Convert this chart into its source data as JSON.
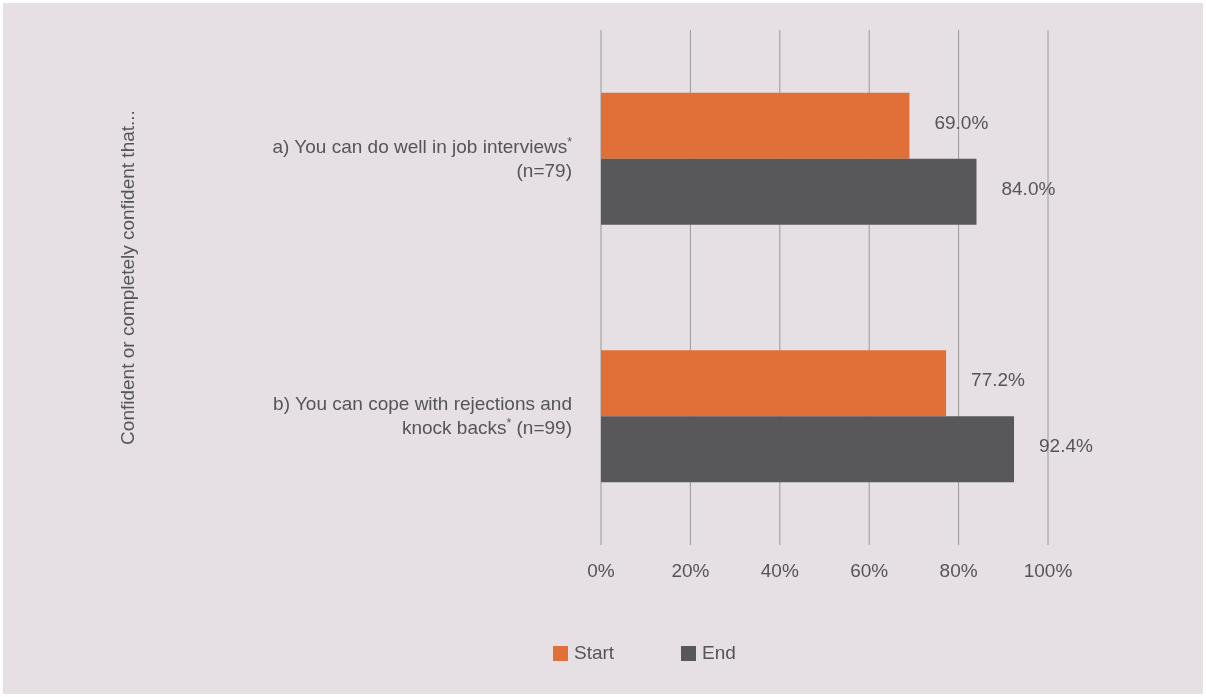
{
  "chart_data": {
    "type": "bar",
    "orientation": "horizontal",
    "annotations": [
      "Confident or completely confident that..."
    ],
    "categories": [
      "a) You can do well in job interviews$^{*}$ (n=79)",
      "b) You can cope with rejections and knock backs$^{*}$ (n=99)"
    ],
    "series": [
      {
        "name": "Start",
        "color": "#e07038",
        "values": [
          69.0,
          77.2
        ],
        "value_labels": [
          "69.0%",
          "77.2%"
        ]
      },
      {
        "name": "End",
        "color": "#58585a",
        "values": [
          84.0,
          92.4
        ],
        "value_labels": [
          "84.0%",
          "92.4%"
        ]
      }
    ],
    "xlim": [
      0,
      100
    ],
    "xticks": [
      {
        "value": 0,
        "label": "0%"
      },
      {
        "value": 20,
        "label": "20%"
      },
      {
        "value": 40,
        "label": "40%"
      },
      {
        "value": 60,
        "label": "60%"
      },
      {
        "value": 80,
        "label": "80%"
      },
      {
        "value": 100,
        "label": "100%"
      }
    ],
    "grid": "x",
    "legend": "bottom"
  }
}
